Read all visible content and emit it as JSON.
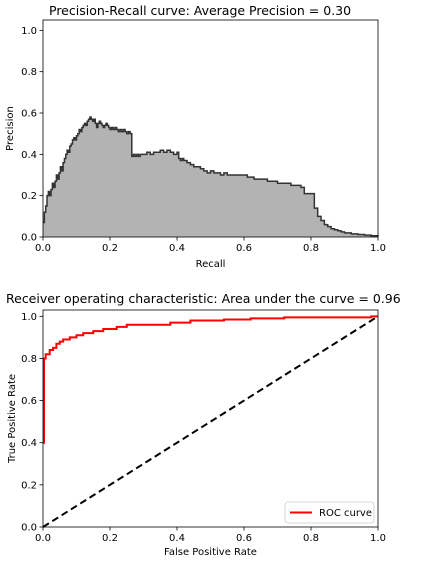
{
  "chart_data": [
    {
      "type": "area",
      "title": "Precision-Recall curve: Average Precision =          0.30",
      "xlabel": "Recall",
      "ylabel": "Precision",
      "xlim": [
        0,
        1
      ],
      "ylim": [
        0,
        1.05
      ],
      "xticks": [
        "0.0",
        "0.2",
        "0.4",
        "0.6",
        "0.8",
        "1.0"
      ],
      "yticks": [
        "0.0",
        "0.2",
        "0.4",
        "0.6",
        "0.8",
        "1.0"
      ],
      "fill_color": "#b3b3b3",
      "line_color": "#333333",
      "grid": false,
      "points": [
        [
          0.0,
          0.07
        ],
        [
          0.004,
          0.12
        ],
        [
          0.008,
          0.15
        ],
        [
          0.012,
          0.2
        ],
        [
          0.016,
          0.22
        ],
        [
          0.02,
          0.2
        ],
        [
          0.024,
          0.23
        ],
        [
          0.028,
          0.26
        ],
        [
          0.032,
          0.24
        ],
        [
          0.036,
          0.27
        ],
        [
          0.04,
          0.3
        ],
        [
          0.044,
          0.28
        ],
        [
          0.048,
          0.31
        ],
        [
          0.052,
          0.34
        ],
        [
          0.056,
          0.32
        ],
        [
          0.06,
          0.36
        ],
        [
          0.064,
          0.38
        ],
        [
          0.068,
          0.4
        ],
        [
          0.072,
          0.42
        ],
        [
          0.076,
          0.41
        ],
        [
          0.08,
          0.44
        ],
        [
          0.084,
          0.45
        ],
        [
          0.088,
          0.47
        ],
        [
          0.092,
          0.48
        ],
        [
          0.096,
          0.47
        ],
        [
          0.1,
          0.49
        ],
        [
          0.104,
          0.5
        ],
        [
          0.108,
          0.52
        ],
        [
          0.112,
          0.51
        ],
        [
          0.116,
          0.53
        ],
        [
          0.12,
          0.54
        ],
        [
          0.124,
          0.55
        ],
        [
          0.128,
          0.54
        ],
        [
          0.132,
          0.56
        ],
        [
          0.136,
          0.57
        ],
        [
          0.14,
          0.58
        ],
        [
          0.144,
          0.57
        ],
        [
          0.148,
          0.56
        ],
        [
          0.152,
          0.57
        ],
        [
          0.156,
          0.55
        ],
        [
          0.16,
          0.53
        ],
        [
          0.164,
          0.55
        ],
        [
          0.168,
          0.56
        ],
        [
          0.172,
          0.55
        ],
        [
          0.176,
          0.54
        ],
        [
          0.18,
          0.53
        ],
        [
          0.184,
          0.54
        ],
        [
          0.188,
          0.55
        ],
        [
          0.192,
          0.54
        ],
        [
          0.196,
          0.53
        ],
        [
          0.2,
          0.52
        ],
        [
          0.205,
          0.53
        ],
        [
          0.21,
          0.52
        ],
        [
          0.215,
          0.53
        ],
        [
          0.22,
          0.52
        ],
        [
          0.225,
          0.51
        ],
        [
          0.23,
          0.52
        ],
        [
          0.235,
          0.51
        ],
        [
          0.24,
          0.52
        ],
        [
          0.245,
          0.51
        ],
        [
          0.25,
          0.5
        ],
        [
          0.255,
          0.51
        ],
        [
          0.26,
          0.5
        ],
        [
          0.265,
          0.39
        ],
        [
          0.27,
          0.4
        ],
        [
          0.275,
          0.39
        ],
        [
          0.28,
          0.4
        ],
        [
          0.285,
          0.39
        ],
        [
          0.29,
          0.4
        ],
        [
          0.3,
          0.4
        ],
        [
          0.31,
          0.41
        ],
        [
          0.32,
          0.4
        ],
        [
          0.33,
          0.41
        ],
        [
          0.34,
          0.41
        ],
        [
          0.35,
          0.42
        ],
        [
          0.36,
          0.41
        ],
        [
          0.37,
          0.42
        ],
        [
          0.38,
          0.41
        ],
        [
          0.39,
          0.4
        ],
        [
          0.4,
          0.41
        ],
        [
          0.405,
          0.38
        ],
        [
          0.41,
          0.37
        ],
        [
          0.415,
          0.38
        ],
        [
          0.42,
          0.37
        ],
        [
          0.43,
          0.36
        ],
        [
          0.44,
          0.35
        ],
        [
          0.45,
          0.34
        ],
        [
          0.46,
          0.34
        ],
        [
          0.47,
          0.33
        ],
        [
          0.48,
          0.32
        ],
        [
          0.49,
          0.31
        ],
        [
          0.5,
          0.32
        ],
        [
          0.51,
          0.31
        ],
        [
          0.52,
          0.31
        ],
        [
          0.53,
          0.3
        ],
        [
          0.54,
          0.31
        ],
        [
          0.55,
          0.3
        ],
        [
          0.56,
          0.3
        ],
        [
          0.57,
          0.3
        ],
        [
          0.58,
          0.3
        ],
        [
          0.6,
          0.3
        ],
        [
          0.61,
          0.29
        ],
        [
          0.62,
          0.29
        ],
        [
          0.63,
          0.28
        ],
        [
          0.64,
          0.28
        ],
        [
          0.66,
          0.28
        ],
        [
          0.67,
          0.27
        ],
        [
          0.68,
          0.27
        ],
        [
          0.69,
          0.27
        ],
        [
          0.7,
          0.26
        ],
        [
          0.72,
          0.26
        ],
        [
          0.73,
          0.26
        ],
        [
          0.74,
          0.25
        ],
        [
          0.75,
          0.25
        ],
        [
          0.76,
          0.25
        ],
        [
          0.77,
          0.24
        ],
        [
          0.78,
          0.21
        ],
        [
          0.79,
          0.21
        ],
        [
          0.8,
          0.21
        ],
        [
          0.81,
          0.14
        ],
        [
          0.82,
          0.1
        ],
        [
          0.83,
          0.08
        ],
        [
          0.84,
          0.06
        ],
        [
          0.85,
          0.05
        ],
        [
          0.86,
          0.04
        ],
        [
          0.87,
          0.035
        ],
        [
          0.88,
          0.03
        ],
        [
          0.89,
          0.025
        ],
        [
          0.9,
          0.02
        ],
        [
          0.92,
          0.015
        ],
        [
          0.94,
          0.012
        ],
        [
          0.96,
          0.009
        ],
        [
          0.98,
          0.006
        ],
        [
          1.0,
          0.004
        ]
      ]
    },
    {
      "type": "line",
      "title": "Receiver operating characteristic: Area under the         curve = 0.96",
      "xlabel": "False Positive Rate",
      "ylabel": "True Positive Rate",
      "xlim": [
        0,
        1
      ],
      "ylim": [
        0,
        1.03
      ],
      "xticks": [
        "0.0",
        "0.2",
        "0.4",
        "0.6",
        "0.8",
        "1.0"
      ],
      "yticks": [
        "0.0",
        "0.2",
        "0.4",
        "0.6",
        "0.8",
        "1.0"
      ],
      "legend_position": "lower-right",
      "grid": false,
      "series": [
        {
          "name": "ROC curve",
          "color": "#ff0000",
          "style": "solid",
          "x": [
            0.0,
            0.003,
            0.003,
            0.008,
            0.008,
            0.02,
            0.02,
            0.03,
            0.03,
            0.04,
            0.04,
            0.05,
            0.05,
            0.06,
            0.06,
            0.08,
            0.08,
            0.1,
            0.1,
            0.12,
            0.12,
            0.15,
            0.15,
            0.18,
            0.18,
            0.22,
            0.22,
            0.25,
            0.25,
            0.38,
            0.38,
            0.44,
            0.44,
            0.54,
            0.54,
            0.62,
            0.62,
            0.72,
            0.72,
            0.98,
            0.98,
            1.0
          ],
          "y": [
            0.4,
            0.4,
            0.8,
            0.8,
            0.82,
            0.82,
            0.84,
            0.84,
            0.85,
            0.85,
            0.87,
            0.87,
            0.88,
            0.88,
            0.89,
            0.89,
            0.9,
            0.9,
            0.91,
            0.91,
            0.92,
            0.92,
            0.93,
            0.93,
            0.94,
            0.94,
            0.95,
            0.95,
            0.96,
            0.96,
            0.97,
            0.97,
            0.98,
            0.98,
            0.985,
            0.985,
            0.99,
            0.99,
            0.995,
            0.995,
            1.0,
            1.0
          ]
        },
        {
          "color": "#000000",
          "style": "dashed",
          "x": [
            0,
            1
          ],
          "y": [
            0,
            1
          ]
        }
      ]
    }
  ]
}
